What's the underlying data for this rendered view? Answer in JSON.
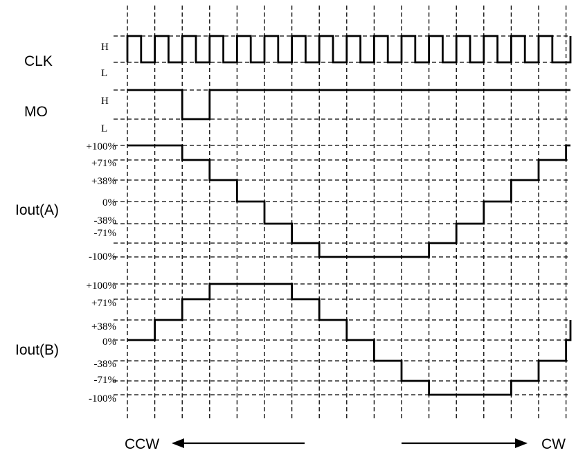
{
  "signals": {
    "clk": "CLK",
    "mo": "MO",
    "iout_a": "Iout(A)",
    "iout_b": "Iout(B)"
  },
  "levels": {
    "clk_high": "H",
    "clk_low": "L",
    "mo_high": "H",
    "mo_low": "L",
    "a_p100": "+100%",
    "a_p71": "+71%",
    "a_p38": "+38%",
    "a_0": "0%",
    "a_m38": "-38%",
    "a_m71": "-71%",
    "a_m100": "-100%",
    "b_p100": "+100%",
    "b_p71": "+71%",
    "b_p38": "+38%",
    "b_0": "0%",
    "b_m38": "-38%",
    "b_m71": "-71%",
    "b_m100": "-100%"
  },
  "directions": {
    "left": "CCW",
    "right": "CW"
  },
  "waveforms": {
    "clk_periods": 16,
    "mo_low_step": [
      2,
      3
    ],
    "iout_a_steps_percent": [
      100,
      100,
      71,
      38,
      0,
      -38,
      -71,
      -100,
      -100,
      -100,
      -100,
      -71,
      -38,
      0,
      38,
      71,
      100,
      100
    ],
    "iout_b_steps_percent": [
      0,
      38,
      71,
      100,
      100,
      100,
      71,
      38,
      0,
      -38,
      -71,
      -100,
      -100,
      -100,
      -71,
      -38,
      0
    ]
  }
}
